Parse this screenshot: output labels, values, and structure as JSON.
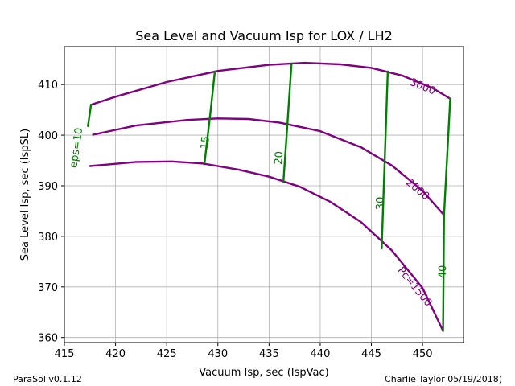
{
  "footer": {
    "left": "ParaSol v0.1.12",
    "right": "Charlie Taylor 05/19/2018)"
  },
  "chart_data": {
    "type": "line",
    "title": "Sea Level and Vacuum Isp for LOX / LH2",
    "xlabel": "Vacuum Isp, sec (IspVac)",
    "ylabel": "Sea Level Isp, sec (IspSL)",
    "xlim": [
      415,
      454
    ],
    "ylim": [
      359,
      417.5
    ],
    "xticks": [
      415,
      420,
      425,
      430,
      435,
      440,
      445,
      450
    ],
    "yticks": [
      360,
      370,
      380,
      390,
      400,
      410
    ],
    "grid": true,
    "colors": {
      "pc": "#800080",
      "eps": "#008000"
    },
    "pc_series": [
      {
        "name": "3000",
        "label": "3000",
        "label_at": [
          450,
          409.5
        ],
        "points": [
          [
            417.6,
            406.0
          ],
          [
            420,
            407.6
          ],
          [
            425,
            410.5
          ],
          [
            430,
            412.7
          ],
          [
            435,
            413.9
          ],
          [
            438.5,
            414.3
          ],
          [
            442,
            414.0
          ],
          [
            445,
            413.3
          ],
          [
            448,
            411.8
          ],
          [
            451,
            409.3
          ],
          [
            452.7,
            407.2
          ]
        ]
      },
      {
        "name": "2000",
        "label": "2000",
        "label_at": [
          449.5,
          389.2
        ],
        "points": [
          [
            417.8,
            400.1
          ],
          [
            422,
            401.9
          ],
          [
            427,
            403.0
          ],
          [
            430,
            403.3
          ],
          [
            433,
            403.2
          ],
          [
            436,
            402.5
          ],
          [
            440,
            400.8
          ],
          [
            444,
            397.6
          ],
          [
            447,
            394.0
          ],
          [
            450,
            389.0
          ],
          [
            452.1,
            384.2
          ]
        ]
      },
      {
        "name": "1500",
        "label": "Pc=1500",
        "label_at": [
          449.2,
          370.0
        ],
        "points": [
          [
            417.5,
            393.9
          ],
          [
            422,
            394.7
          ],
          [
            425.5,
            394.8
          ],
          [
            428.5,
            394.4
          ],
          [
            432,
            393.2
          ],
          [
            435,
            391.8
          ],
          [
            438,
            389.8
          ],
          [
            441,
            386.8
          ],
          [
            444,
            382.8
          ],
          [
            447,
            377.2
          ],
          [
            450,
            369.8
          ],
          [
            452,
            361.3
          ]
        ]
      }
    ],
    "eps_series": [
      {
        "name": "eps=10",
        "label": "eps=10",
        "label_at": [
          416.2,
          397.5
        ],
        "points": [
          [
            417.6,
            406.0
          ],
          [
            417.3,
            401.8
          ]
        ]
      },
      {
        "name": "15",
        "label": "15",
        "label_at": [
          428.8,
          398.5
        ],
        "points": [
          [
            429.7,
            412.6
          ],
          [
            429.3,
            405.0
          ],
          [
            428.7,
            394.5
          ]
        ]
      },
      {
        "name": "20",
        "label": "20",
        "label_at": [
          436.0,
          395.5
        ],
        "points": [
          [
            437.2,
            414.2
          ],
          [
            436.8,
            402.5
          ],
          [
            436.4,
            390.8
          ]
        ]
      },
      {
        "name": "30",
        "label": "30",
        "label_at": [
          445.9,
          386.5
        ],
        "points": [
          [
            446.6,
            412.6
          ],
          [
            446.3,
            395.0
          ],
          [
            446.0,
            377.6
          ]
        ]
      },
      {
        "name": "40",
        "label": "40",
        "label_at": [
          452.0,
          373.0
        ],
        "points": [
          [
            452.7,
            407.2
          ],
          [
            452.1,
            384.2
          ],
          [
            452.0,
            361.3
          ]
        ]
      }
    ]
  }
}
